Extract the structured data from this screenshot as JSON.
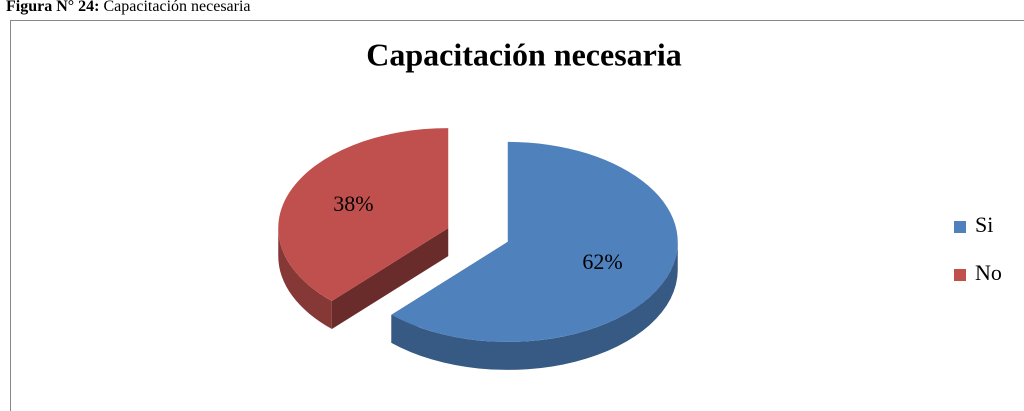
{
  "caption": {
    "label": "Figura N° 24:",
    "text": "Capacitación necesaria"
  },
  "chart_data": {
    "type": "pie",
    "title": "Capacitación necesaria",
    "categories": [
      "Si",
      "No"
    ],
    "values": [
      62,
      38
    ],
    "value_labels": [
      "62%",
      "38%"
    ],
    "colors": [
      "#4f81bd",
      "#c0504d"
    ],
    "legend": "right"
  }
}
